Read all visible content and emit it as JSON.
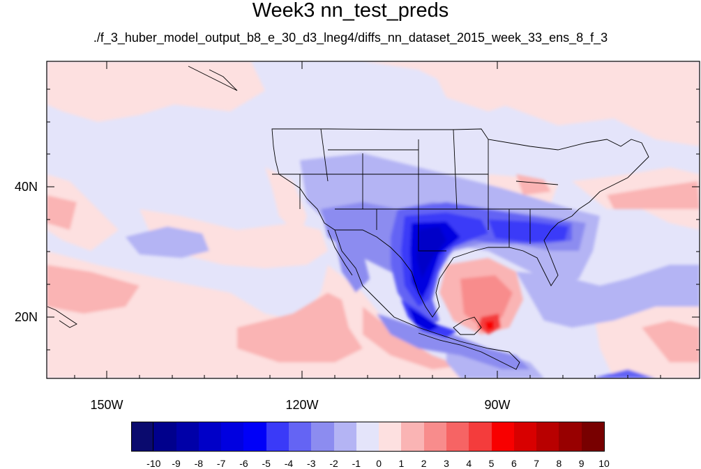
{
  "title": "Week3 nn_test_preds",
  "subtitle": "./f_3_huber_model_output_b8_e_30_d3_lneg4/diffs_nn_dataset_2015_week_33_ens_8_f_3",
  "lat_labels": [
    "40N",
    "20N"
  ],
  "lon_labels": [
    "150W",
    "120W",
    "90W"
  ],
  "colorbar": {
    "labels": [
      "-10",
      "-9",
      "-8",
      "-7",
      "-6",
      "-5",
      "-4",
      "-3",
      "-2",
      "-1",
      "0",
      "1",
      "2",
      "3",
      "4",
      "5",
      "6",
      "7",
      "8",
      "9",
      "10"
    ],
    "colors": [
      "#0a0a6e",
      "#00008c",
      "#0000a8",
      "#0000c8",
      "#0000e0",
      "#0000f8",
      "#3a3af8",
      "#6464f4",
      "#8c8cf0",
      "#b4b4f4",
      "#e4e4fa",
      "#fde0e0",
      "#fab4b4",
      "#f88c8c",
      "#f66464",
      "#f43c3c",
      "#f80000",
      "#d80000",
      "#b80000",
      "#980000",
      "#780000"
    ]
  },
  "colors": {
    "ocean_light_blue": "#e4e4fa",
    "ocean_light_red": "#fde0e0",
    "strong_blue": "#0000f8",
    "strong_red": "#f80000"
  }
}
